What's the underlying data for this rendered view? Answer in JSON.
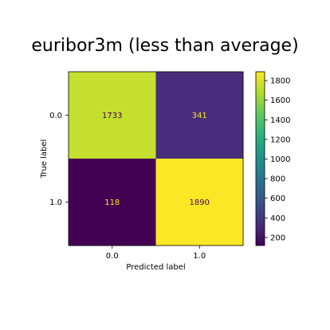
{
  "chart_data": {
    "type": "heatmap",
    "title": "euribor3m (less than average)",
    "xlabel": "Predicted label",
    "ylabel": "True label",
    "x_categories": [
      "0.0",
      "1.0"
    ],
    "y_categories": [
      "0.0",
      "1.0"
    ],
    "values": [
      [
        1733,
        341
      ],
      [
        118,
        1890
      ]
    ],
    "colormap": "viridis",
    "colorbar": {
      "range": [
        118,
        1890
      ],
      "ticks": [
        200,
        400,
        600,
        800,
        1000,
        1200,
        1400,
        1600,
        1800
      ]
    },
    "text_colors": {
      "light_cells": "#440154",
      "dark_cells": "#fde725"
    }
  }
}
